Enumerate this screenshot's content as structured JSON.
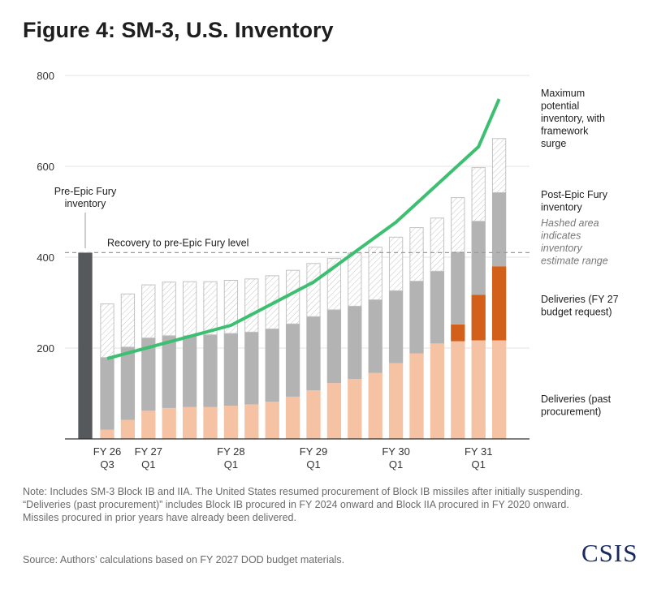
{
  "title": "Figure 4: SM-3, U.S. Inventory",
  "chart_data": {
    "type": "bar",
    "ylim": [
      0,
      800
    ],
    "yticks": [
      200,
      400,
      600,
      800
    ],
    "x_tick_labels": [
      {
        "line1": "FY 26",
        "line2": "Q3"
      },
      {
        "line1": "FY 27",
        "line2": "Q1"
      },
      {
        "line1": "FY 28",
        "line2": "Q1"
      },
      {
        "line1": "FY 29",
        "line2": "Q1"
      },
      {
        "line1": "FY 30",
        "line2": "Q1"
      },
      {
        "line1": "FY 31",
        "line2": "Q1"
      }
    ],
    "pre_bar": {
      "value": 410,
      "label_lines": [
        "Pre-Epic Fury",
        "inventory"
      ]
    },
    "reference_line": {
      "value": 410,
      "label": "Recovery to pre-Epic Fury level"
    },
    "series": [
      {
        "name": "Deliveries (past procurement)",
        "color": "#f5c2a4",
        "values": [
          20,
          42,
          62,
          68,
          70,
          70,
          73,
          76,
          82,
          93,
          107,
          123,
          132,
          145,
          167,
          188,
          210,
          215,
          217,
          217
        ]
      },
      {
        "name": "Deliveries (FY 27 budget request)",
        "color": "#d2601a",
        "values": [
          0,
          0,
          0,
          0,
          0,
          0,
          0,
          0,
          0,
          0,
          0,
          0,
          0,
          0,
          0,
          0,
          0,
          37,
          100,
          163
        ]
      },
      {
        "name": "Post-Epic Fury inventory",
        "color": "#b3b3b3",
        "totals": [
          180,
          203,
          223,
          228,
          228,
          230,
          233,
          236,
          243,
          254,
          270,
          285,
          293,
          307,
          327,
          348,
          370,
          412,
          480,
          543
        ]
      },
      {
        "name": "Hashed area indicates inventory estimate range",
        "totals": [
          298,
          320,
          340,
          346,
          347,
          347,
          350,
          353,
          360,
          372,
          387,
          398,
          410,
          423,
          445,
          466,
          487,
          532,
          598,
          662
        ]
      }
    ],
    "max_line": {
      "name": "Maximum potential inventory, with framework surge",
      "color": "#3dbf72",
      "x_index": [
        0,
        6,
        10,
        14,
        18,
        19
      ],
      "values": [
        177,
        250,
        345,
        477,
        643,
        748
      ]
    },
    "legend": {
      "max": [
        "Maximum",
        "potential",
        "inventory, with",
        "framework",
        "surge"
      ],
      "post": [
        "Post-Epic Fury",
        "inventory"
      ],
      "hashed": [
        "Hashed area",
        "indicates",
        "inventory",
        "estimate range"
      ],
      "fy27": [
        "Deliveries (FY 27",
        "budget request)"
      ],
      "past": [
        "Deliveries (past",
        "procurement)"
      ]
    }
  },
  "note": "Note: Includes SM-3 Block IB and IIA. The United States resumed procurement of Block IB missiles after initially suspending. “Deliveries (past procurement)” includes Block IB procured in FY 2024 onward and Block IIA procured in FY 2020 onward. Missiles procured in prior years have already been delivered.",
  "source": "Source: Authors’ calculations based on FY 2027 DOD budget materials.",
  "logo": "CSIS"
}
